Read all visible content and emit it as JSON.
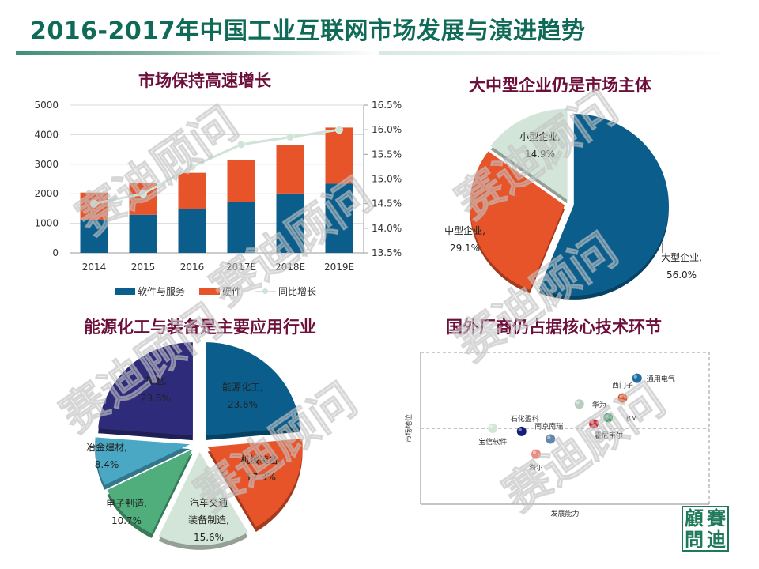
{
  "page": {
    "title": "2016-2017年中国工业互联网市场发展与演进趋势",
    "watermark_text": "赛迪顾问",
    "seal_chars": [
      "顧",
      "賽",
      "問",
      "迪"
    ]
  },
  "colors": {
    "title_green": "#0f6b57",
    "panel_title": "#6d0f3b",
    "blue": "#0b5e8c",
    "orange": "#e8542a",
    "line_green": "#cfe3d6"
  },
  "chart_data": [
    {
      "id": "market-growth",
      "type": "bar",
      "stacked": true,
      "title": "市场保持高速增长",
      "categories": [
        "2014",
        "2015",
        "2016",
        "2017E",
        "2018E",
        "2019E"
      ],
      "series": [
        {
          "name": "软件与服务",
          "type": "bar",
          "color": "#0b5e8c",
          "values": [
            1100,
            1290,
            1480,
            1720,
            2010,
            2340
          ]
        },
        {
          "name": "硬件",
          "type": "bar",
          "color": "#e8542a",
          "values": [
            940,
            1070,
            1230,
            1420,
            1640,
            1900
          ]
        },
        {
          "name": "同比增长",
          "type": "line",
          "axis": "right",
          "color": "#cfe3d6",
          "values": [
            14.5,
            14.7,
            15.25,
            15.7,
            15.85,
            16.0
          ]
        }
      ],
      "ylim": [
        0,
        5000
      ],
      "yticks": [
        "0",
        "1000",
        "2000",
        "3000",
        "4000",
        "5000"
      ],
      "y2lim": [
        13.5,
        16.5
      ],
      "y2ticks": [
        "13.5%",
        "14.0%",
        "14.5%",
        "15.0%",
        "15.5%",
        "16.0%",
        "16.5%"
      ],
      "grid": true,
      "legend": "bottom",
      "xlabel": "",
      "ylabel": ""
    },
    {
      "id": "enterprise-size",
      "type": "pie",
      "title": "大中型企业仍是市场主体",
      "slices": [
        {
          "label": "大型企业",
          "value": 56.0,
          "display": "56.0%",
          "color": "#0b5e8c"
        },
        {
          "label": "中型企业",
          "value": 29.1,
          "display": "29.1%",
          "color": "#e8542a"
        },
        {
          "label": "小型企业",
          "value": 14.9,
          "display": "14.9%",
          "color": "#d3e5d8"
        }
      ]
    },
    {
      "id": "industry-share",
      "type": "pie",
      "title": "能源化工与装备是主要应用行业",
      "slices": [
        {
          "label": "能源化工",
          "value": 23.6,
          "display": "23.6%",
          "color": "#0b5e8c"
        },
        {
          "label": "机械装备",
          "value": 17.9,
          "display": "17.9%",
          "color": "#e8542a"
        },
        {
          "label": "汽车交通装备制造",
          "value": 15.6,
          "display": "15.6%",
          "color": "#d3e5d8"
        },
        {
          "label": "电子制造",
          "value": 10.7,
          "display": "10.7%",
          "color": "#4fae7c"
        },
        {
          "label": "冶金建材",
          "value": 8.4,
          "display": "8.4%",
          "color": "#4aa8c4"
        },
        {
          "label": "其他",
          "value": 23.8,
          "display": "23.8%",
          "color": "#2e2c7a"
        }
      ]
    },
    {
      "id": "vendor-quadrant",
      "type": "scatter",
      "title": "国外厂商仍占据核心技术环节",
      "xlabel": "发展能力",
      "ylabel": "市场地位",
      "xlim": [
        0,
        10
      ],
      "ylim": [
        0,
        10
      ],
      "quadrant_split": {
        "x": 5,
        "y": 5
      },
      "points": [
        {
          "label": "通用电气",
          "x": 7.5,
          "y": 8.3,
          "color": "#1f6ea3"
        },
        {
          "label": "西门子",
          "x": 7.0,
          "y": 7.0,
          "color": "#e0501e"
        },
        {
          "label": "华为",
          "x": 5.5,
          "y": 6.6,
          "color": "#b7cdbf"
        },
        {
          "label": "IBM",
          "x": 6.5,
          "y": 5.7,
          "color": "#3f9f6a"
        },
        {
          "label": "霍尼韦尔",
          "x": 6.0,
          "y": 5.3,
          "color": "#cc2a36"
        },
        {
          "label": "南京南瑞",
          "x": 4.5,
          "y": 4.3,
          "color": "#6485ad"
        },
        {
          "label": "石化盈科",
          "x": 3.5,
          "y": 4.8,
          "color": "#151d7a"
        },
        {
          "label": "宝信软件",
          "x": 2.5,
          "y": 5.0,
          "color": "#d3e5d8"
        },
        {
          "label": "海尔",
          "x": 4.0,
          "y": 3.3,
          "color": "#ec8a80"
        }
      ]
    }
  ]
}
